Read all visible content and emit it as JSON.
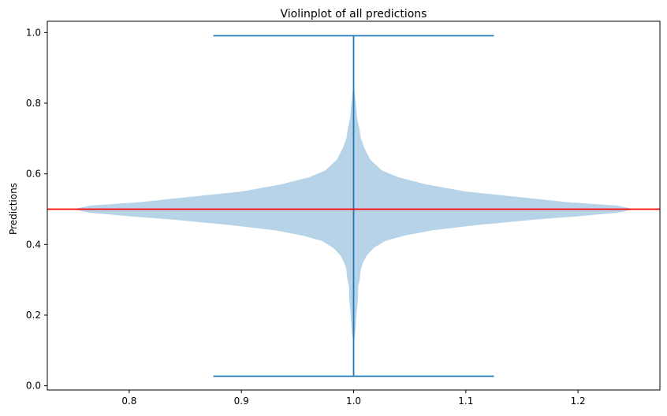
{
  "chart_data": {
    "type": "violin",
    "title": "Violinplot of all predictions",
    "xlabel": "",
    "ylabel": "Predictions",
    "xlim": [
      0.727,
      1.273
    ],
    "ylim": [
      -0.012,
      1.032
    ],
    "x_ticks": [
      {
        "value": 0.8,
        "label": "0.8"
      },
      {
        "value": 0.9,
        "label": "0.9"
      },
      {
        "value": 1.0,
        "label": "1.0"
      },
      {
        "value": 1.1,
        "label": "1.1"
      },
      {
        "value": 1.2,
        "label": "1.2"
      }
    ],
    "y_ticks": [
      {
        "value": 0.0,
        "label": "0.0"
      },
      {
        "value": 0.2,
        "label": "0.2"
      },
      {
        "value": 0.4,
        "label": "0.4"
      },
      {
        "value": 0.6,
        "label": "0.6"
      },
      {
        "value": 0.8,
        "label": "0.8"
      },
      {
        "value": 1.0,
        "label": "1.0"
      }
    ],
    "violin": {
      "position": 1.0,
      "min": 0.027,
      "max": 0.991,
      "cap_halfwidth": 0.125,
      "body_color": "#b6d3e7",
      "line_color": "#1f77b4",
      "density_profile": [
        [
          0.12,
          0.0
        ],
        [
          0.15,
          0.0015
        ],
        [
          0.2,
          0.0025
        ],
        [
          0.25,
          0.004
        ],
        [
          0.28,
          0.004
        ],
        [
          0.3,
          0.0055
        ],
        [
          0.33,
          0.0065
        ],
        [
          0.35,
          0.0085
        ],
        [
          0.37,
          0.012
        ],
        [
          0.39,
          0.018
        ],
        [
          0.41,
          0.028
        ],
        [
          0.425,
          0.045
        ],
        [
          0.44,
          0.07
        ],
        [
          0.455,
          0.11
        ],
        [
          0.47,
          0.16
        ],
        [
          0.48,
          0.2
        ],
        [
          0.49,
          0.235
        ],
        [
          0.5,
          0.25
        ],
        [
          0.51,
          0.235
        ],
        [
          0.52,
          0.19
        ],
        [
          0.535,
          0.145
        ],
        [
          0.55,
          0.1
        ],
        [
          0.57,
          0.065
        ],
        [
          0.59,
          0.04
        ],
        [
          0.61,
          0.025
        ],
        [
          0.64,
          0.015
        ],
        [
          0.67,
          0.01
        ],
        [
          0.7,
          0.0065
        ],
        [
          0.73,
          0.005
        ],
        [
          0.76,
          0.003
        ],
        [
          0.8,
          0.002
        ],
        [
          0.84,
          0.0005
        ],
        [
          0.88,
          0.0
        ]
      ]
    },
    "reference_line": {
      "y": 0.5,
      "color": "#ff0000"
    }
  }
}
